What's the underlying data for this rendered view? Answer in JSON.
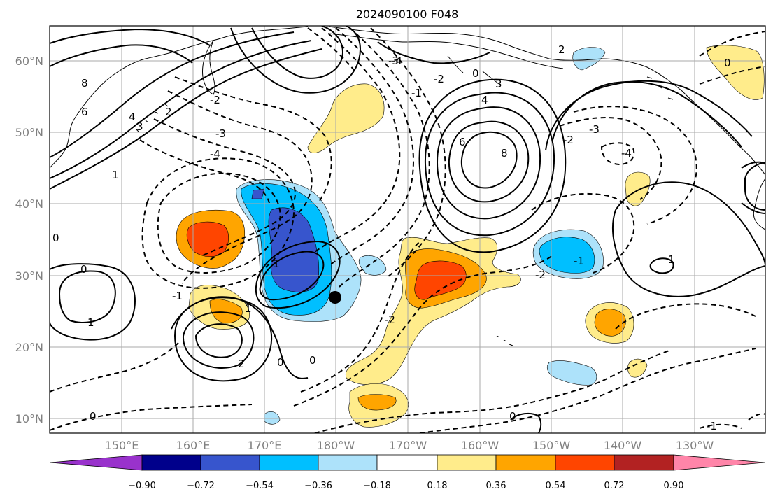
{
  "title": "2024090100 F048",
  "lat_labels": [
    "60°N",
    "50°N",
    "40°N",
    "30°N",
    "20°N",
    "10°N"
  ],
  "lon_labels": [
    "150°E",
    "160°E",
    "170°E",
    "180°W",
    "170°W",
    "160°W",
    "150°W",
    "140°W",
    "130°W"
  ],
  "colorbar": {
    "colors": [
      "#9932cc",
      "#00008b",
      "#3755cd",
      "#00bfff",
      "#ade2fa",
      "#ffffff",
      "#ffec8b",
      "#ffa500",
      "#ff4500",
      "#b22222",
      "#ff85a9"
    ],
    "tick_labels": [
      "−0.90",
      "−0.72",
      "−0.54",
      "−0.36",
      "−0.18",
      "0.18",
      "0.36",
      "0.54",
      "0.72",
      "0.90"
    ]
  },
  "contour_labels": [
    "8",
    "6",
    "4",
    "3",
    "2",
    "1",
    "0",
    "-1",
    "-2",
    "-3",
    "-4"
  ],
  "colors": {
    "coast": "#000000",
    "grid": "#aaaaaa",
    "marker": "#000000"
  }
}
